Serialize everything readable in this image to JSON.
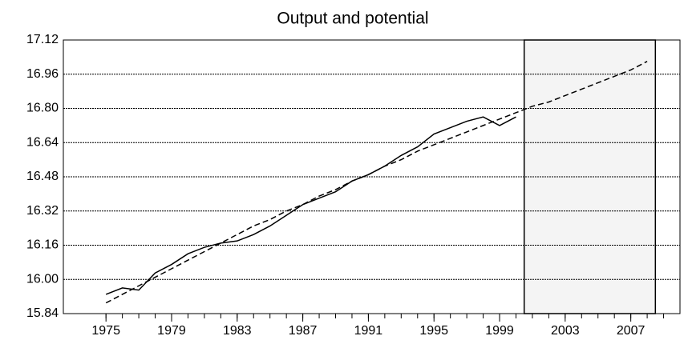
{
  "chart_data": {
    "type": "line",
    "title": "Output and potential",
    "x": [
      1975,
      1976,
      1977,
      1978,
      1979,
      1980,
      1981,
      1982,
      1983,
      1984,
      1985,
      1986,
      1987,
      1988,
      1989,
      1990,
      1991,
      1992,
      1993,
      1994,
      1995,
      1996,
      1997,
      1998,
      1999,
      2000,
      2001,
      2002,
      2003,
      2004,
      2005,
      2006,
      2007,
      2008
    ],
    "series": [
      {
        "color": "#000000",
        "dashed": false,
        "values": [
          15.93,
          15.96,
          15.95,
          16.03,
          16.07,
          16.12,
          16.15,
          16.17,
          16.18,
          16.21,
          16.25,
          16.3,
          16.35,
          16.38,
          16.41,
          16.46,
          16.49,
          16.53,
          16.58,
          16.62,
          16.68,
          16.71,
          16.74,
          16.76,
          16.72,
          16.76,
          null,
          null,
          null,
          null,
          null,
          null,
          null,
          null
        ]
      },
      {
        "color": "#000000",
        "dashed": true,
        "values": [
          15.89,
          15.93,
          15.97,
          16.01,
          16.05,
          16.09,
          16.13,
          16.17,
          16.21,
          16.25,
          16.28,
          16.32,
          16.35,
          16.39,
          16.42,
          16.46,
          16.49,
          16.53,
          16.56,
          16.6,
          16.63,
          16.66,
          16.69,
          16.72,
          16.75,
          16.78,
          16.81,
          16.83,
          16.86,
          16.89,
          16.92,
          16.95,
          16.98,
          17.02
        ]
      }
    ],
    "xlim": [
      1972.4,
      2010.0
    ],
    "xticks": [
      1975,
      1979,
      1983,
      1987,
      1991,
      1995,
      1999,
      2003,
      2007
    ],
    "xminorticks": [
      1975,
      1976,
      1977,
      1978,
      1979,
      1980,
      1981,
      1982,
      1983,
      1984,
      1985,
      1986,
      1987,
      1988,
      1989,
      1990,
      1991,
      1992,
      1993,
      1994,
      1995,
      1996,
      1997,
      1998,
      1999,
      2000,
      2001,
      2002,
      2003,
      2004,
      2005,
      2006,
      2007,
      2008,
      2009
    ],
    "ylim": [
      15.84,
      17.12
    ],
    "yticks": [
      {
        "value": 15.84,
        "label": "15.84"
      },
      {
        "value": 16.0,
        "label": "16.00"
      },
      {
        "value": 16.16,
        "label": "16.16"
      },
      {
        "value": 16.32,
        "label": "16.32"
      },
      {
        "value": 16.48,
        "label": "16.48"
      },
      {
        "value": 16.64,
        "label": "16.64"
      },
      {
        "value": 16.8,
        "label": "16.80"
      },
      {
        "value": 16.96,
        "label": "16.96"
      },
      {
        "value": 17.12,
        "label": "17.12"
      }
    ],
    "shade": [
      2000.5,
      2008.5
    ],
    "shade_color": "#f4f4f4",
    "grid": true
  }
}
